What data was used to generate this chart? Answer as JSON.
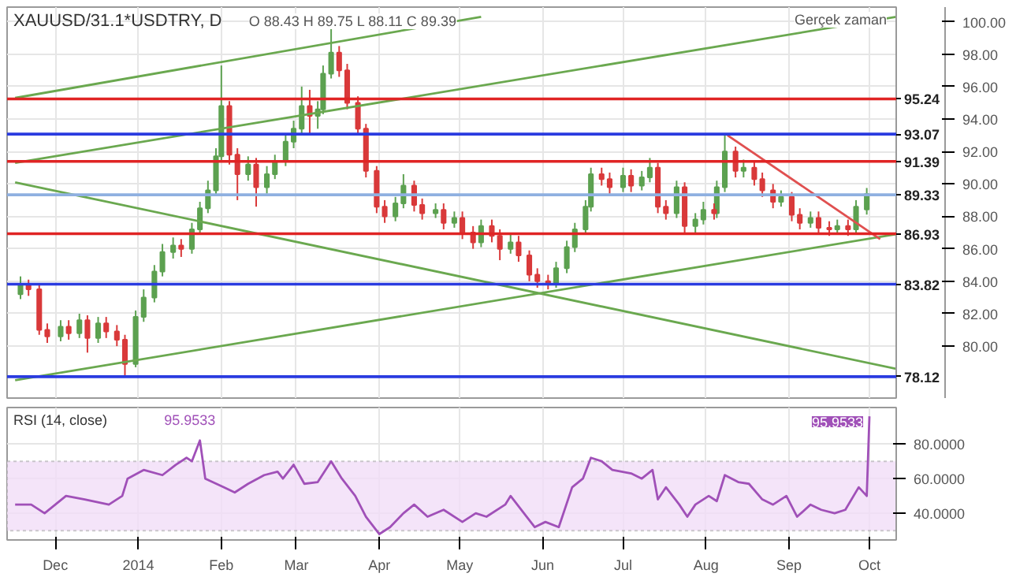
{
  "chart_data": [
    {
      "type": "candlestick",
      "title": "XAUUSD/31.1*USDTRY, D",
      "annotations": [
        "O 88.43 H 89.75 L 88.11 C 89.39",
        "Gerçek zaman"
      ],
      "xlim": [
        "2013-11-13",
        "2014-10-11"
      ],
      "ylim": [
        76.8,
        100.9
      ],
      "xticks": [
        {
          "value": "2013-12-01",
          "label": null
        },
        {
          "value": "2014-01-01",
          "label": null
        },
        {
          "value": "2014-02-01",
          "label": null
        },
        {
          "value": "2014-03-01",
          "label": null
        },
        {
          "value": "2014-04-01",
          "label": null
        },
        {
          "value": "2014-05-01",
          "label": null
        },
        {
          "value": "2014-06-01",
          "label": null
        },
        {
          "value": "2014-07-01",
          "label": null
        },
        {
          "value": "2014-08-01",
          "label": null
        },
        {
          "value": "2014-09-01",
          "label": null
        },
        {
          "value": "2014-10-01",
          "label": null
        }
      ],
      "yticks": [
        {
          "value": 80,
          "label": "80.00"
        },
        {
          "value": 82,
          "label": "82.00"
        },
        {
          "value": 84,
          "label": "84.00"
        },
        {
          "value": 86,
          "label": "86.00"
        },
        {
          "value": 88,
          "label": "88.00"
        },
        {
          "value": 90,
          "label": "90.00"
        },
        {
          "value": 92,
          "label": "92.00"
        },
        {
          "value": 94,
          "label": "94.00"
        },
        {
          "value": 96,
          "label": "96.00"
        },
        {
          "value": 98,
          "label": "98.00"
        },
        {
          "value": 100,
          "label": "100.00"
        }
      ],
      "tick_labels": "y",
      "grid": true,
      "series": [
        {
          "color": "#5ca150",
          "x": [
            "2013-11-18",
            "2013-12-03",
            "2013-12-10",
            "2013-12-17",
            "2013-12-31",
            "2014-01-03",
            "2014-01-07",
            "2014-01-10",
            "2014-01-14",
            "2014-01-21",
            "2014-01-24",
            "2014-01-27",
            "2014-01-30",
            "2014-02-01",
            "2014-02-11",
            "2014-02-18",
            "2014-02-21",
            "2014-02-25",
            "2014-02-28",
            "2014-03-03",
            "2014-03-09",
            "2014-03-11",
            "2014-03-14",
            "2014-04-07",
            "2014-04-10",
            "2014-04-22",
            "2014-04-29",
            "2014-05-09",
            "2014-05-20",
            "2014-06-06",
            "2014-06-10",
            "2014-06-13",
            "2014-06-17",
            "2014-06-19",
            "2014-07-01",
            "2014-07-08",
            "2014-07-11",
            "2014-07-21",
            "2014-07-28",
            "2014-07-31",
            "2014-08-05",
            "2014-08-08",
            "2014-08-15",
            "2014-08-29",
            "2014-09-09",
            "2014-09-19",
            "2014-09-26",
            "2014-09-30"
          ],
          "ohlc": [
            [
              83.2,
              84.3,
              82.9,
              83.8
            ],
            [
              80.6,
              81.6,
              80.3,
              81.2
            ],
            [
              80.8,
              82.0,
              80.5,
              81.6
            ],
            [
              80.5,
              81.8,
              80.2,
              81.4
            ],
            [
              78.9,
              82.2,
              78.7,
              81.8
            ],
            [
              81.8,
              83.5,
              81.5,
              83.0
            ],
            [
              83.0,
              85.0,
              82.7,
              84.6
            ],
            [
              84.6,
              86.3,
              84.3,
              85.8
            ],
            [
              85.8,
              86.7,
              85.4,
              86.2
            ],
            [
              86.0,
              87.6,
              85.7,
              87.2
            ],
            [
              87.2,
              88.9,
              86.9,
              88.5
            ],
            [
              88.5,
              90.2,
              88.2,
              89.6
            ],
            [
              89.6,
              92.2,
              89.3,
              91.7
            ],
            [
              91.7,
              97.3,
              91.4,
              94.8
            ],
            [
              90.6,
              91.7,
              90.2,
              91.2
            ],
            [
              89.8,
              91.1,
              89.4,
              90.6
            ],
            [
              90.6,
              91.8,
              90.3,
              91.4
            ],
            [
              91.4,
              93.0,
              91.1,
              92.6
            ],
            [
              92.6,
              93.9,
              92.2,
              93.4
            ],
            [
              93.4,
              96.0,
              93.1,
              94.8
            ],
            [
              94.2,
              95.1,
              93.4,
              94.6
            ],
            [
              94.6,
              97.3,
              94.3,
              96.8
            ],
            [
              96.8,
              99.6,
              96.5,
              98.1
            ],
            [
              88.0,
              89.2,
              87.7,
              88.8
            ],
            [
              88.8,
              90.6,
              88.5,
              89.9
            ],
            [
              88.2,
              88.8,
              87.9,
              88.4
            ],
            [
              87.6,
              88.3,
              87.3,
              87.9
            ],
            [
              86.4,
              87.8,
              86.1,
              87.4
            ],
            [
              86.0,
              86.9,
              85.7,
              86.4
            ],
            [
              83.9,
              85.2,
              83.6,
              84.8
            ],
            [
              84.8,
              86.5,
              84.5,
              86.1
            ],
            [
              86.1,
              87.6,
              85.8,
              87.2
            ],
            [
              87.2,
              89.0,
              86.9,
              88.6
            ],
            [
              88.6,
              91.0,
              88.3,
              90.6
            ],
            [
              89.8,
              91.0,
              89.5,
              90.5
            ],
            [
              89.9,
              90.8,
              89.6,
              90.4
            ],
            [
              90.4,
              91.6,
              90.1,
              91.0
            ],
            [
              88.2,
              90.2,
              87.9,
              89.8
            ],
            [
              87.4,
              88.2,
              87.0,
              87.8
            ],
            [
              87.8,
              88.9,
              87.5,
              88.4
            ],
            [
              88.2,
              90.2,
              87.9,
              89.8
            ],
            [
              89.8,
              93.0,
              89.5,
              92.0
            ],
            [
              90.8,
              91.5,
              90.4,
              91.0
            ],
            [
              88.9,
              89.6,
              88.6,
              89.2
            ],
            [
              87.6,
              88.3,
              87.3,
              87.9
            ],
            [
              87.2,
              87.8,
              86.9,
              87.4
            ],
            [
              87.2,
              89.0,
              86.9,
              88.6
            ],
            [
              88.43,
              89.75,
              88.11,
              89.39
            ]
          ]
        },
        {
          "color": "#d9393a",
          "x": [
            "2013-11-21",
            "2013-11-25",
            "2013-11-28",
            "2013-12-06",
            "2013-12-13",
            "2013-12-20",
            "2013-12-24",
            "2013-12-27",
            "2014-01-17",
            "2014-02-04",
            "2014-02-07",
            "2014-02-14",
            "2014-03-06",
            "2014-03-17",
            "2014-03-20",
            "2014-03-24",
            "2014-03-27",
            "2014-03-31",
            "2014-04-03",
            "2014-04-14",
            "2014-04-17",
            "2014-04-25",
            "2014-05-02",
            "2014-05-06",
            "2014-05-13",
            "2014-05-16",
            "2014-05-23",
            "2014-05-27",
            "2014-05-30",
            "2014-06-03",
            "2014-06-23",
            "2014-06-26",
            "2014-07-04",
            "2014-07-14",
            "2014-07-17",
            "2014-07-24",
            "2014-08-04",
            "2014-08-12",
            "2014-08-19",
            "2014-08-22",
            "2014-08-26",
            "2014-09-02",
            "2014-09-05",
            "2014-09-12",
            "2014-09-16",
            "2014-09-23"
          ],
          "ohlc": [
            [
              83.8,
              84.1,
              83.1,
              83.5
            ],
            [
              83.5,
              83.8,
              80.7,
              81.0
            ],
            [
              81.0,
              81.4,
              80.2,
              80.6
            ],
            [
              81.2,
              81.6,
              80.4,
              80.8
            ],
            [
              81.6,
              81.9,
              79.6,
              80.5
            ],
            [
              81.4,
              81.8,
              80.5,
              80.9
            ],
            [
              80.9,
              81.3,
              80.0,
              80.4
            ],
            [
              80.4,
              80.7,
              78.2,
              78.9
            ],
            [
              86.2,
              86.6,
              85.5,
              86.0
            ],
            [
              94.8,
              95.1,
              91.2,
              91.8
            ],
            [
              91.8,
              92.2,
              89.0,
              90.6
            ],
            [
              91.2,
              91.6,
              88.6,
              89.8
            ],
            [
              94.8,
              95.8,
              93.0,
              94.2
            ],
            [
              98.1,
              98.5,
              96.6,
              97.0
            ],
            [
              97.0,
              97.4,
              94.6,
              95.0
            ],
            [
              95.0,
              95.4,
              93.0,
              93.4
            ],
            [
              93.4,
              93.7,
              90.4,
              90.8
            ],
            [
              90.8,
              91.1,
              88.2,
              88.6
            ],
            [
              88.6,
              89.0,
              87.6,
              88.0
            ],
            [
              89.9,
              90.2,
              88.3,
              88.7
            ],
            [
              88.7,
              89.1,
              87.8,
              88.2
            ],
            [
              88.4,
              88.8,
              87.2,
              87.6
            ],
            [
              87.9,
              88.3,
              86.6,
              87.0
            ],
            [
              87.0,
              87.4,
              86.0,
              86.4
            ],
            [
              87.4,
              87.8,
              86.4,
              86.8
            ],
            [
              86.8,
              87.2,
              85.3,
              86.0
            ],
            [
              86.4,
              86.8,
              85.2,
              85.6
            ],
            [
              85.6,
              85.9,
              84.0,
              84.4
            ],
            [
              84.4,
              84.8,
              83.6,
              84.0
            ],
            [
              84.0,
              84.4,
              83.5,
              83.9
            ],
            [
              90.6,
              91.0,
              89.9,
              90.3
            ],
            [
              90.3,
              90.7,
              89.4,
              89.8
            ],
            [
              90.5,
              90.9,
              89.5,
              89.9
            ],
            [
              91.0,
              91.3,
              88.2,
              88.6
            ],
            [
              88.6,
              89.0,
              87.8,
              88.2
            ],
            [
              89.8,
              90.1,
              86.9,
              87.4
            ],
            [
              88.4,
              88.8,
              87.8,
              88.2
            ],
            [
              92.0,
              92.3,
              90.4,
              90.8
            ],
            [
              91.0,
              91.4,
              89.9,
              90.3
            ],
            [
              90.3,
              90.7,
              89.2,
              89.6
            ],
            [
              89.6,
              90.0,
              88.5,
              88.9
            ],
            [
              89.2,
              89.5,
              87.7,
              88.1
            ],
            [
              88.1,
              88.5,
              87.2,
              87.6
            ],
            [
              87.9,
              88.3,
              86.9,
              87.3
            ],
            [
              87.3,
              87.7,
              86.8,
              87.2
            ],
            [
              87.4,
              87.8,
              86.8,
              87.2
            ]
          ]
        },
        {
          "type": "line",
          "color": "#6aa84f",
          "x": [
            "2013-11-16",
            "2014-05-09"
          ],
          "values": [
            95.3,
            100.3
          ]
        },
        {
          "type": "line",
          "color": "#6aa84f",
          "x": [
            "2013-11-16",
            "2014-10-11"
          ],
          "values": [
            91.3,
            100.3
          ]
        },
        {
          "type": "line",
          "color": "#6aa84f",
          "x": [
            "2013-11-16",
            "2014-10-11"
          ],
          "values": [
            77.9,
            86.9
          ]
        },
        {
          "type": "line",
          "color": "#6aa84f",
          "x": [
            "2013-11-16",
            "2014-10-11"
          ],
          "values": [
            90.1,
            78.6
          ]
        },
        {
          "type": "line",
          "color": "#e05050",
          "x": [
            "2014-08-09",
            "2014-10-05"
          ],
          "values": [
            93.0,
            86.6
          ]
        }
      ],
      "ref_lines": [
        {
          "axis": "y",
          "value": 95.24,
          "label": "95.24",
          "color": "#e02424"
        },
        {
          "axis": "y",
          "value": 93.07,
          "label": "93.07",
          "color": "#2a3be0"
        },
        {
          "axis": "y",
          "value": 91.39,
          "label": "91.39",
          "color": "#e02424"
        },
        {
          "axis": "y",
          "value": 89.33,
          "label": "89.33",
          "color": "#8fb0e0"
        },
        {
          "axis": "y",
          "value": 86.93,
          "label": "86.93",
          "color": "#e02424"
        },
        {
          "axis": "y",
          "value": 83.82,
          "label": "83.82",
          "color": "#2a3be0"
        },
        {
          "axis": "y",
          "value": 78.12,
          "label": "78.12",
          "color": "#2a3be0"
        }
      ]
    },
    {
      "type": "line",
      "title": "RSI (14, close)",
      "annotations": [
        "95.9533"
      ],
      "xlim": [
        "2013-11-13",
        "2014-10-11"
      ],
      "ylim": [
        24.6,
        101
      ],
      "xticks": [
        {
          "value": "2013-12-01",
          "label": "Dec"
        },
        {
          "value": "2014-01-01",
          "label": "2014"
        },
        {
          "value": "2014-02-01",
          "label": "Feb"
        },
        {
          "value": "2014-03-01",
          "label": "Mar"
        },
        {
          "value": "2014-04-01",
          "label": "Apr"
        },
        {
          "value": "2014-05-01",
          "label": "May"
        },
        {
          "value": "2014-06-01",
          "label": "Jun"
        },
        {
          "value": "2014-07-01",
          "label": "Jul"
        },
        {
          "value": "2014-08-01",
          "label": "Aug"
        },
        {
          "value": "2014-09-01",
          "label": "Sep"
        },
        {
          "value": "2014-10-01",
          "label": "Oct"
        }
      ],
      "yticks": [
        {
          "value": 40,
          "label": "40.0000"
        },
        {
          "value": 60,
          "label": "60.0000"
        },
        {
          "value": 80,
          "label": "80.0000"
        }
      ],
      "grid": true,
      "bands": [
        {
          "axis": "y",
          "from": 30,
          "to": 70,
          "color": "#f1ddf8"
        }
      ],
      "series": [
        {
          "color": "#a050b8",
          "x": [
            "2013-11-16",
            "2013-11-22",
            "2013-11-27",
            "2013-12-01",
            "2013-12-05",
            "2013-12-12",
            "2013-12-21",
            "2013-12-26",
            "2013-12-28",
            "2014-01-03",
            "2014-01-10",
            "2014-01-15",
            "2014-01-19",
            "2014-01-21",
            "2014-01-24",
            "2014-01-26",
            "2014-02-02",
            "2014-02-06",
            "2014-02-11",
            "2014-02-17",
            "2014-02-22",
            "2014-02-24",
            "2014-02-28",
            "2014-03-04",
            "2014-03-09",
            "2014-03-14",
            "2014-03-18",
            "2014-03-23",
            "2014-03-27",
            "2014-04-01",
            "2014-04-05",
            "2014-04-10",
            "2014-04-14",
            "2014-04-19",
            "2014-04-25",
            "2014-05-02",
            "2014-05-07",
            "2014-05-11",
            "2014-05-18",
            "2014-05-20",
            "2014-05-25",
            "2014-05-29",
            "2014-06-02",
            "2014-06-07",
            "2014-06-12",
            "2014-06-16",
            "2014-06-19",
            "2014-06-23",
            "2014-06-27",
            "2014-07-04",
            "2014-07-08",
            "2014-07-12",
            "2014-07-14",
            "2014-07-17",
            "2014-07-22",
            "2014-07-25",
            "2014-07-28",
            "2014-08-02",
            "2014-08-05",
            "2014-08-08",
            "2014-08-13",
            "2014-08-17",
            "2014-08-22",
            "2014-08-26",
            "2014-08-31",
            "2014-09-04",
            "2014-09-09",
            "2014-09-13",
            "2014-09-18",
            "2014-09-22",
            "2014-09-27",
            "2014-09-30",
            "2014-10-01"
          ],
          "values": [
            45,
            45,
            40,
            45,
            50,
            48,
            45,
            50,
            60,
            65,
            62,
            68,
            72,
            70,
            82,
            60,
            55,
            52,
            57,
            62,
            64,
            60,
            68,
            57,
            58,
            70,
            60,
            50,
            38,
            28,
            32,
            40,
            45,
            38,
            42,
            35,
            40,
            38,
            45,
            50,
            40,
            32,
            35,
            32,
            55,
            60,
            72,
            70,
            65,
            63,
            60,
            65,
            48,
            55,
            45,
            38,
            45,
            50,
            47,
            62,
            58,
            57,
            48,
            45,
            50,
            38,
            45,
            42,
            40,
            42,
            55,
            50,
            95.9533
          ],
          "value_labels": [
            null,
            null,
            null,
            null,
            null,
            null,
            null,
            null,
            null,
            null,
            null,
            null,
            null,
            null,
            null,
            null,
            null,
            null,
            null,
            null,
            null,
            null,
            null,
            null,
            null,
            null,
            null,
            null,
            null,
            null,
            null,
            null,
            null,
            null,
            null,
            null,
            null,
            null,
            null,
            null,
            null,
            null,
            null,
            null,
            null,
            null,
            null,
            null,
            null,
            null,
            null,
            null,
            null,
            null,
            null,
            null,
            null,
            null,
            null,
            null,
            null,
            null,
            null,
            null,
            null,
            null,
            null,
            null,
            null,
            null,
            null,
            null,
            "95.9533"
          ]
        }
      ]
    }
  ]
}
